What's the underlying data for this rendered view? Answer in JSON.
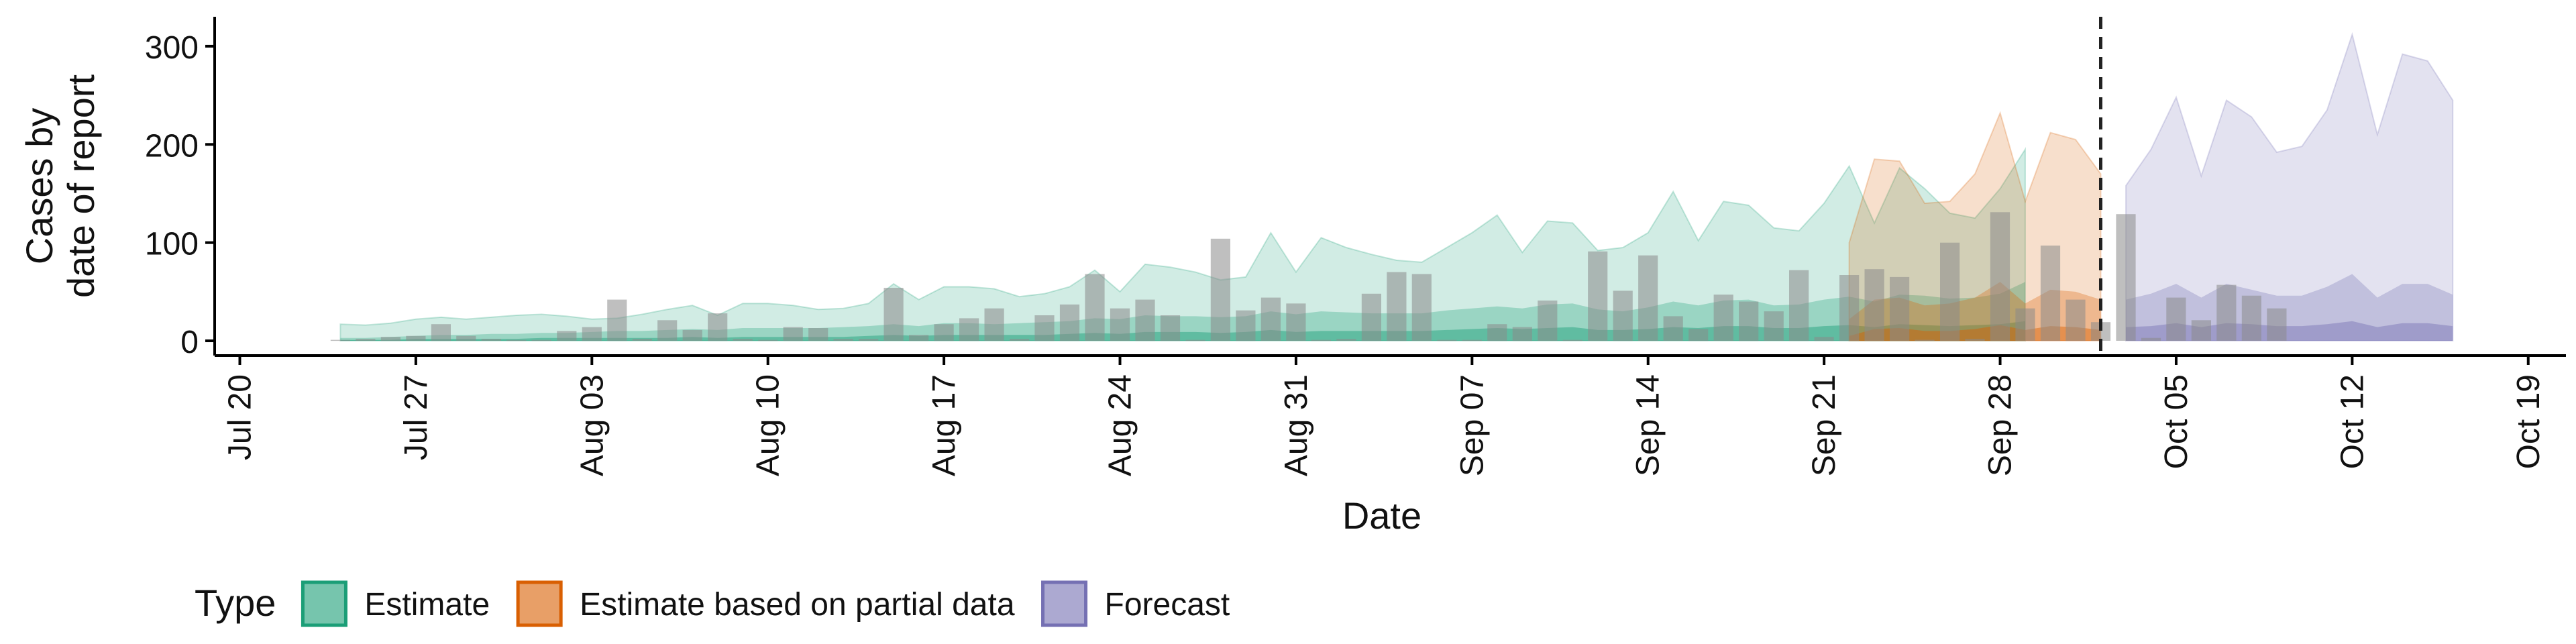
{
  "chart_data": {
    "type": "area",
    "xlabel": "Date",
    "ylabel_lines": [
      "Cases by",
      "date of report"
    ],
    "ylim": [
      -15,
      330
    ],
    "yticks": [
      0,
      100,
      200,
      300
    ],
    "x_ticks": [
      {
        "day": 0,
        "label": "Jul 20"
      },
      {
        "day": 7,
        "label": "Jul 27"
      },
      {
        "day": 14,
        "label": "Aug 03"
      },
      {
        "day": 21,
        "label": "Aug 10"
      },
      {
        "day": 28,
        "label": "Aug 17"
      },
      {
        "day": 35,
        "label": "Aug 24"
      },
      {
        "day": 42,
        "label": "Aug 31"
      },
      {
        "day": 49,
        "label": "Sep 07"
      },
      {
        "day": 56,
        "label": "Sep 14"
      },
      {
        "day": 63,
        "label": "Sep 21"
      },
      {
        "day": 70,
        "label": "Sep 28"
      },
      {
        "day": 77,
        "label": "Oct 05"
      },
      {
        "day": 84,
        "label": "Oct 12"
      },
      {
        "day": 91,
        "label": "Oct 19"
      }
    ],
    "xlim_days": [
      -1,
      92.5
    ],
    "x_origin": "Jul 20",
    "forecast_line_day": 74,
    "legend": {
      "title": "Type",
      "entries": [
        {
          "name": "Estimate",
          "fill": "#1b9e77",
          "stroke": "#1b9e77"
        },
        {
          "name": "Estimate based on partial data",
          "fill": "#d95f02",
          "stroke": "#d95f02"
        },
        {
          "name": "Forecast",
          "fill": "#7570b3",
          "stroke": "#7570b3"
        }
      ]
    },
    "series": [
      {
        "name": "Estimate",
        "color": "#1b9e77",
        "start_day": 4,
        "outer_upper": [
          17,
          16,
          18,
          22,
          24,
          22,
          24,
          26,
          27,
          25,
          22,
          23,
          27,
          32,
          36,
          26,
          38,
          38,
          36,
          32,
          33,
          38,
          58,
          42,
          55,
          55,
          53,
          45,
          48,
          55,
          72,
          50,
          78,
          75,
          70,
          62,
          65,
          110,
          70,
          105,
          95,
          88,
          82,
          80,
          95,
          110,
          128,
          90,
          122,
          120,
          92,
          95,
          110,
          152,
          102,
          142,
          138,
          115,
          112,
          140,
          178,
          120,
          176,
          155,
          130,
          125,
          155,
          195
        ],
        "outer_lower": [
          0,
          0,
          0,
          0,
          0,
          0,
          0,
          0,
          0,
          0,
          0,
          0,
          0,
          0,
          0,
          0,
          0,
          0,
          0,
          0,
          0,
          0,
          0,
          0,
          0,
          0,
          0,
          0,
          0,
          0,
          0,
          0,
          0,
          0,
          0,
          0,
          0,
          0,
          0,
          0,
          0,
          0,
          0,
          0,
          0,
          0,
          0,
          0,
          0,
          0,
          0,
          0,
          0,
          0,
          0,
          0,
          0,
          0,
          0,
          0,
          0,
          0,
          0,
          0,
          0,
          0,
          0,
          0
        ],
        "inner_upper": [
          3,
          3,
          4,
          5,
          6,
          6,
          7,
          7,
          8,
          8,
          9,
          10,
          10,
          11,
          12,
          11,
          13,
          13,
          13,
          13,
          14,
          15,
          17,
          15,
          18,
          18,
          17,
          18,
          19,
          20,
          23,
          22,
          26,
          25,
          25,
          24,
          25,
          30,
          27,
          30,
          29,
          28,
          28,
          28,
          31,
          33,
          35,
          33,
          37,
          38,
          32,
          30,
          34,
          40,
          36,
          41,
          42,
          36,
          37,
          42,
          45,
          40,
          47,
          46,
          43,
          44,
          48,
          60
        ],
        "inner_lower": [
          0,
          0,
          0,
          0,
          0,
          0,
          0,
          0,
          0,
          0,
          0,
          0,
          0,
          0,
          0,
          0,
          0,
          0,
          0,
          0,
          0,
          0,
          0,
          0,
          0,
          0,
          0,
          0,
          0,
          0,
          0,
          0,
          0,
          0,
          0,
          0,
          0,
          0,
          0,
          0,
          0,
          0,
          0,
          0,
          0,
          0,
          0,
          0,
          0,
          0,
          0,
          0,
          0,
          0,
          0,
          0,
          0,
          0,
          0,
          0,
          0,
          0,
          0,
          0,
          0,
          0,
          0,
          0
        ],
        "core_upper": [
          1,
          1,
          1,
          2,
          2,
          2,
          2,
          2,
          3,
          3,
          3,
          3,
          3,
          3,
          4,
          3,
          4,
          4,
          4,
          4,
          4,
          5,
          6,
          5,
          6,
          6,
          6,
          6,
          6,
          7,
          8,
          7,
          9,
          9,
          9,
          8,
          9,
          11,
          9,
          10,
          10,
          10,
          10,
          10,
          11,
          12,
          13,
          12,
          13,
          14,
          11,
          11,
          12,
          14,
          13,
          15,
          15,
          13,
          13,
          15,
          16,
          14,
          17,
          16,
          15,
          16,
          17,
          20
        ]
      },
      {
        "name": "Estimate based on partial data",
        "color": "#d95f02",
        "start_day": 64,
        "outer_upper": [
          100,
          185,
          183,
          140,
          142,
          170,
          232,
          142,
          212,
          205,
          170
        ],
        "inner_upper": [
          22,
          42,
          44,
          36,
          38,
          44,
          60,
          38,
          52,
          50,
          42
        ],
        "core_upper": [
          5,
          12,
          13,
          10,
          10,
          12,
          16,
          11,
          15,
          14,
          11
        ]
      },
      {
        "name": "Forecast",
        "color": "#7570b3",
        "start_day": 75,
        "outer_upper": [
          158,
          195,
          248,
          168,
          245,
          228,
          192,
          198,
          235,
          312,
          210,
          292,
          285,
          245
        ],
        "inner_upper": [
          42,
          48,
          58,
          44,
          58,
          52,
          46,
          46,
          55,
          68,
          44,
          58,
          58,
          47
        ],
        "core_upper": [
          14,
          15,
          18,
          14,
          18,
          17,
          15,
          15,
          17,
          20,
          14,
          18,
          18,
          15
        ]
      }
    ],
    "observed_cases": {
      "start_day": 4,
      "values": [
        1,
        2,
        4,
        5,
        17,
        5,
        2,
        1,
        1,
        10,
        14,
        42,
        2,
        21,
        11,
        28,
        2,
        1,
        14,
        13,
        2,
        2,
        54,
        6,
        17,
        23,
        33,
        2,
        26,
        37,
        68,
        33,
        42,
        26,
        1,
        104,
        31,
        44,
        38,
        1,
        2,
        48,
        70,
        68,
        1,
        1,
        17,
        14,
        41,
        1,
        91,
        51,
        87,
        25,
        12,
        47,
        40,
        30,
        72,
        4,
        67,
        73,
        65,
        1,
        100,
        2,
        131,
        33,
        97,
        42,
        19,
        129,
        3,
        44,
        21,
        57,
        46,
        33
      ]
    }
  }
}
